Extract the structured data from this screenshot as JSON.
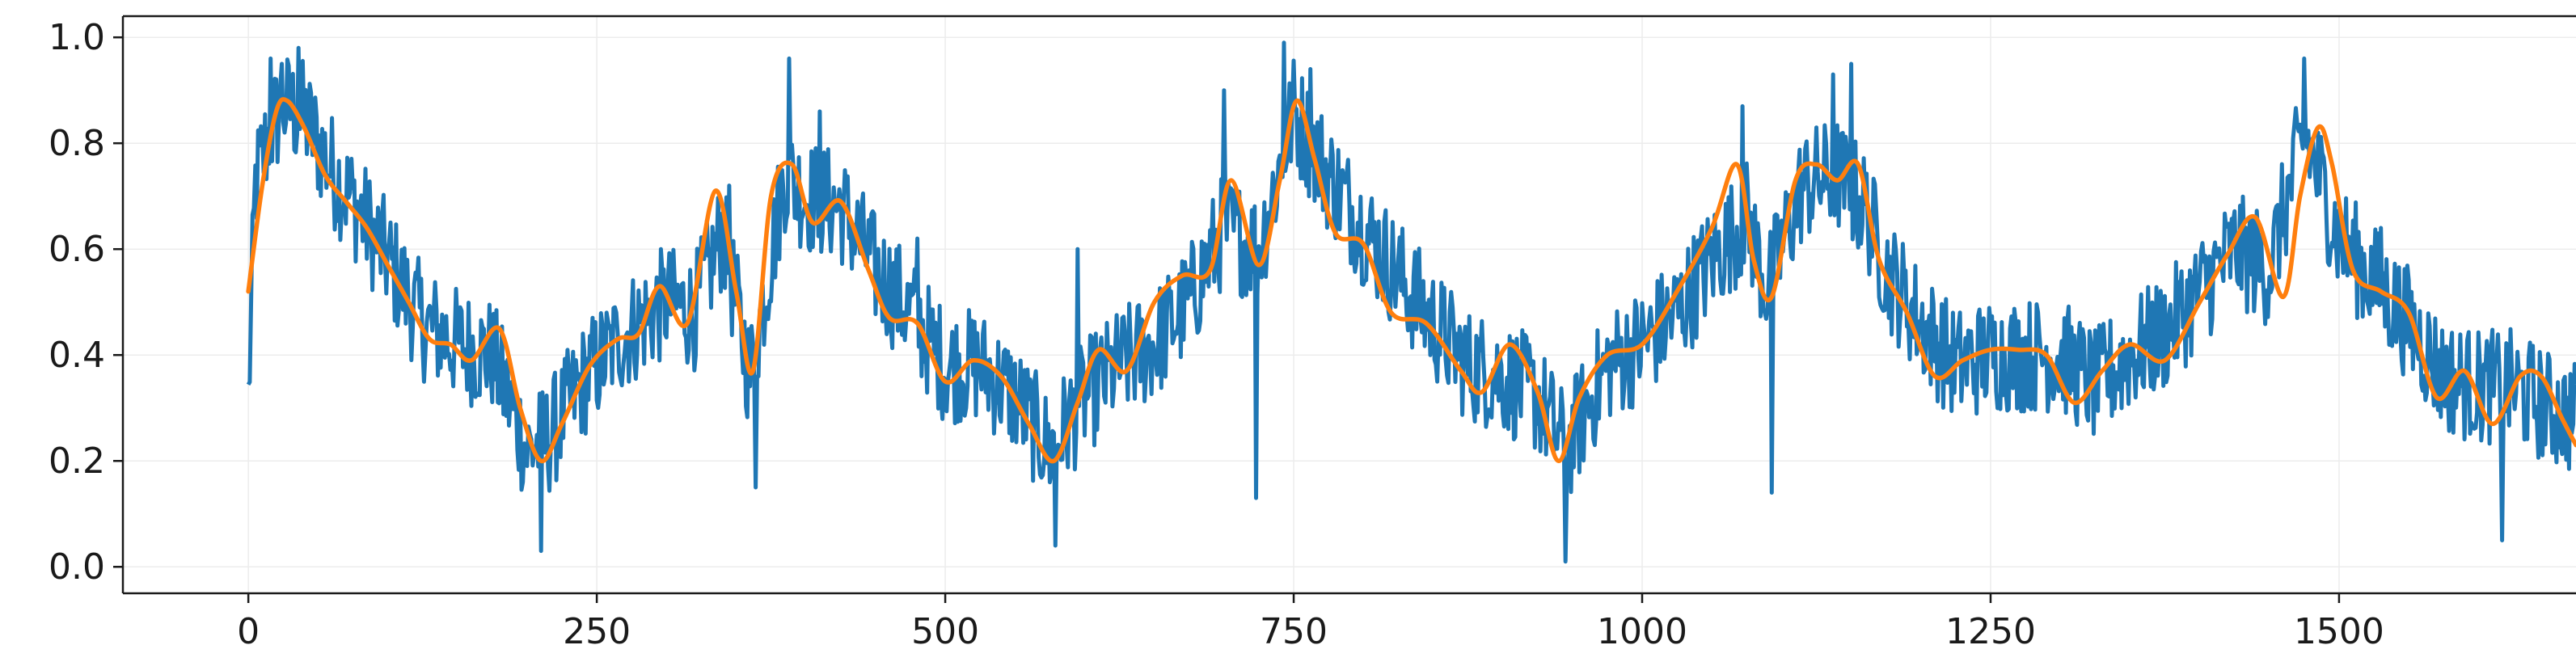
{
  "chart_data": {
    "type": "line",
    "title": "",
    "xlabel": "",
    "ylabel": "",
    "xlim": [
      -90,
      1670
    ],
    "ylim": [
      -0.05,
      1.04
    ],
    "x_ticks": [
      0,
      250,
      500,
      750,
      1000,
      1250,
      1500
    ],
    "y_ticks": [
      0.0,
      0.2,
      0.4,
      0.6,
      0.8,
      1.0
    ],
    "x_tick_labels": [
      "0",
      "250",
      "500",
      "750",
      "1000",
      "1250",
      "1500"
    ],
    "y_tick_labels": [
      "0.0",
      "0.2",
      "0.4",
      "0.6",
      "0.8",
      "1.0"
    ],
    "grid": true,
    "legend": "none",
    "x_range": [
      0,
      1670
    ],
    "series": [
      {
        "role": "raw",
        "color": "#1f77b4",
        "sample_step": 1,
        "noise_amplitude": 0.11,
        "envelope_points": [
          [
            0,
            0.31
          ],
          [
            5,
            0.72
          ],
          [
            15,
            0.82
          ],
          [
            25,
            0.87
          ],
          [
            40,
            0.85
          ],
          [
            60,
            0.75
          ],
          [
            80,
            0.67
          ],
          [
            100,
            0.58
          ],
          [
            125,
            0.46
          ],
          [
            150,
            0.42
          ],
          [
            175,
            0.4
          ],
          [
            200,
            0.22
          ],
          [
            215,
            0.24
          ],
          [
            240,
            0.35
          ],
          [
            270,
            0.44
          ],
          [
            300,
            0.5
          ],
          [
            320,
            0.48
          ],
          [
            340,
            0.63
          ],
          [
            360,
            0.36
          ],
          [
            385,
            0.74
          ],
          [
            400,
            0.7
          ],
          [
            425,
            0.68
          ],
          [
            450,
            0.56
          ],
          [
            475,
            0.48
          ],
          [
            500,
            0.38
          ],
          [
            525,
            0.38
          ],
          [
            550,
            0.32
          ],
          [
            575,
            0.22
          ],
          [
            600,
            0.32
          ],
          [
            625,
            0.38
          ],
          [
            650,
            0.42
          ],
          [
            675,
            0.5
          ],
          [
            700,
            0.64
          ],
          [
            725,
            0.6
          ],
          [
            750,
            0.86
          ],
          [
            775,
            0.74
          ],
          [
            800,
            0.64
          ],
          [
            825,
            0.55
          ],
          [
            850,
            0.46
          ],
          [
            875,
            0.38
          ],
          [
            900,
            0.36
          ],
          [
            925,
            0.32
          ],
          [
            945,
            0.22
          ],
          [
            975,
            0.38
          ],
          [
            1000,
            0.42
          ],
          [
            1025,
            0.48
          ],
          [
            1050,
            0.58
          ],
          [
            1075,
            0.66
          ],
          [
            1090,
            0.52
          ],
          [
            1115,
            0.72
          ],
          [
            1140,
            0.74
          ],
          [
            1160,
            0.68
          ],
          [
            1175,
            0.56
          ],
          [
            1200,
            0.46
          ],
          [
            1225,
            0.38
          ],
          [
            1250,
            0.4
          ],
          [
            1275,
            0.4
          ],
          [
            1300,
            0.4
          ],
          [
            1325,
            0.34
          ],
          [
            1350,
            0.4
          ],
          [
            1375,
            0.44
          ],
          [
            1400,
            0.52
          ],
          [
            1425,
            0.6
          ],
          [
            1450,
            0.56
          ],
          [
            1475,
            0.82
          ],
          [
            1500,
            0.62
          ],
          [
            1525,
            0.54
          ],
          [
            1550,
            0.46
          ],
          [
            1575,
            0.36
          ],
          [
            1600,
            0.34
          ],
          [
            1625,
            0.34
          ],
          [
            1650,
            0.3
          ],
          [
            1670,
            0.28
          ]
        ],
        "spikes": [
          [
            16,
            0.96
          ],
          [
            24,
            0.95
          ],
          [
            36,
            0.98
          ],
          [
            210,
            0.03
          ],
          [
            265,
            0.44
          ],
          [
            345,
            0.72
          ],
          [
            364,
            0.15
          ],
          [
            388,
            0.96
          ],
          [
            410,
            0.86
          ],
          [
            480,
            0.62
          ],
          [
            579,
            0.04
          ],
          [
            595,
            0.6
          ],
          [
            700,
            0.9
          ],
          [
            743,
            0.99
          ],
          [
            762,
            0.94
          ],
          [
            723,
            0.13
          ],
          [
            945,
            0.01
          ],
          [
            1072,
            0.87
          ],
          [
            1093,
            0.14
          ],
          [
            1137,
            0.93
          ],
          [
            1150,
            0.95
          ],
          [
            1475,
            0.96
          ],
          [
            1530,
            0.64
          ],
          [
            1617,
            0.05
          ]
        ]
      },
      {
        "role": "smoothed",
        "color": "#ff7f0e",
        "points": [
          [
            0,
            0.52
          ],
          [
            10,
            0.72
          ],
          [
            20,
            0.86
          ],
          [
            28,
            0.88
          ],
          [
            40,
            0.83
          ],
          [
            55,
            0.74
          ],
          [
            70,
            0.69
          ],
          [
            85,
            0.64
          ],
          [
            100,
            0.57
          ],
          [
            115,
            0.5
          ],
          [
            130,
            0.43
          ],
          [
            145,
            0.42
          ],
          [
            160,
            0.39
          ],
          [
            180,
            0.45
          ],
          [
            195,
            0.3
          ],
          [
            210,
            0.2
          ],
          [
            225,
            0.27
          ],
          [
            245,
            0.38
          ],
          [
            265,
            0.43
          ],
          [
            280,
            0.44
          ],
          [
            295,
            0.53
          ],
          [
            315,
            0.46
          ],
          [
            335,
            0.71
          ],
          [
            350,
            0.52
          ],
          [
            362,
            0.37
          ],
          [
            375,
            0.7
          ],
          [
            390,
            0.76
          ],
          [
            405,
            0.65
          ],
          [
            425,
            0.69
          ],
          [
            445,
            0.56
          ],
          [
            460,
            0.47
          ],
          [
            480,
            0.46
          ],
          [
            500,
            0.35
          ],
          [
            520,
            0.39
          ],
          [
            540,
            0.36
          ],
          [
            560,
            0.27
          ],
          [
            578,
            0.2
          ],
          [
            595,
            0.31
          ],
          [
            610,
            0.41
          ],
          [
            630,
            0.37
          ],
          [
            650,
            0.5
          ],
          [
            670,
            0.55
          ],
          [
            690,
            0.56
          ],
          [
            705,
            0.73
          ],
          [
            725,
            0.57
          ],
          [
            740,
            0.73
          ],
          [
            752,
            0.88
          ],
          [
            765,
            0.77
          ],
          [
            780,
            0.63
          ],
          [
            800,
            0.61
          ],
          [
            820,
            0.48
          ],
          [
            845,
            0.46
          ],
          [
            870,
            0.37
          ],
          [
            885,
            0.33
          ],
          [
            905,
            0.42
          ],
          [
            925,
            0.33
          ],
          [
            940,
            0.2
          ],
          [
            955,
            0.32
          ],
          [
            975,
            0.4
          ],
          [
            1000,
            0.42
          ],
          [
            1025,
            0.52
          ],
          [
            1050,
            0.64
          ],
          [
            1068,
            0.76
          ],
          [
            1080,
            0.58
          ],
          [
            1093,
            0.51
          ],
          [
            1110,
            0.73
          ],
          [
            1125,
            0.76
          ],
          [
            1140,
            0.73
          ],
          [
            1155,
            0.76
          ],
          [
            1170,
            0.58
          ],
          [
            1190,
            0.48
          ],
          [
            1210,
            0.36
          ],
          [
            1230,
            0.39
          ],
          [
            1250,
            0.41
          ],
          [
            1270,
            0.41
          ],
          [
            1290,
            0.4
          ],
          [
            1310,
            0.31
          ],
          [
            1330,
            0.37
          ],
          [
            1350,
            0.42
          ],
          [
            1375,
            0.39
          ],
          [
            1400,
            0.5
          ],
          [
            1420,
            0.59
          ],
          [
            1440,
            0.66
          ],
          [
            1460,
            0.51
          ],
          [
            1472,
            0.7
          ],
          [
            1485,
            0.83
          ],
          [
            1495,
            0.76
          ],
          [
            1510,
            0.56
          ],
          [
            1530,
            0.52
          ],
          [
            1550,
            0.48
          ],
          [
            1570,
            0.32
          ],
          [
            1590,
            0.37
          ],
          [
            1610,
            0.27
          ],
          [
            1630,
            0.36
          ],
          [
            1645,
            0.36
          ],
          [
            1660,
            0.28
          ],
          [
            1670,
            0.23
          ]
        ]
      }
    ]
  }
}
